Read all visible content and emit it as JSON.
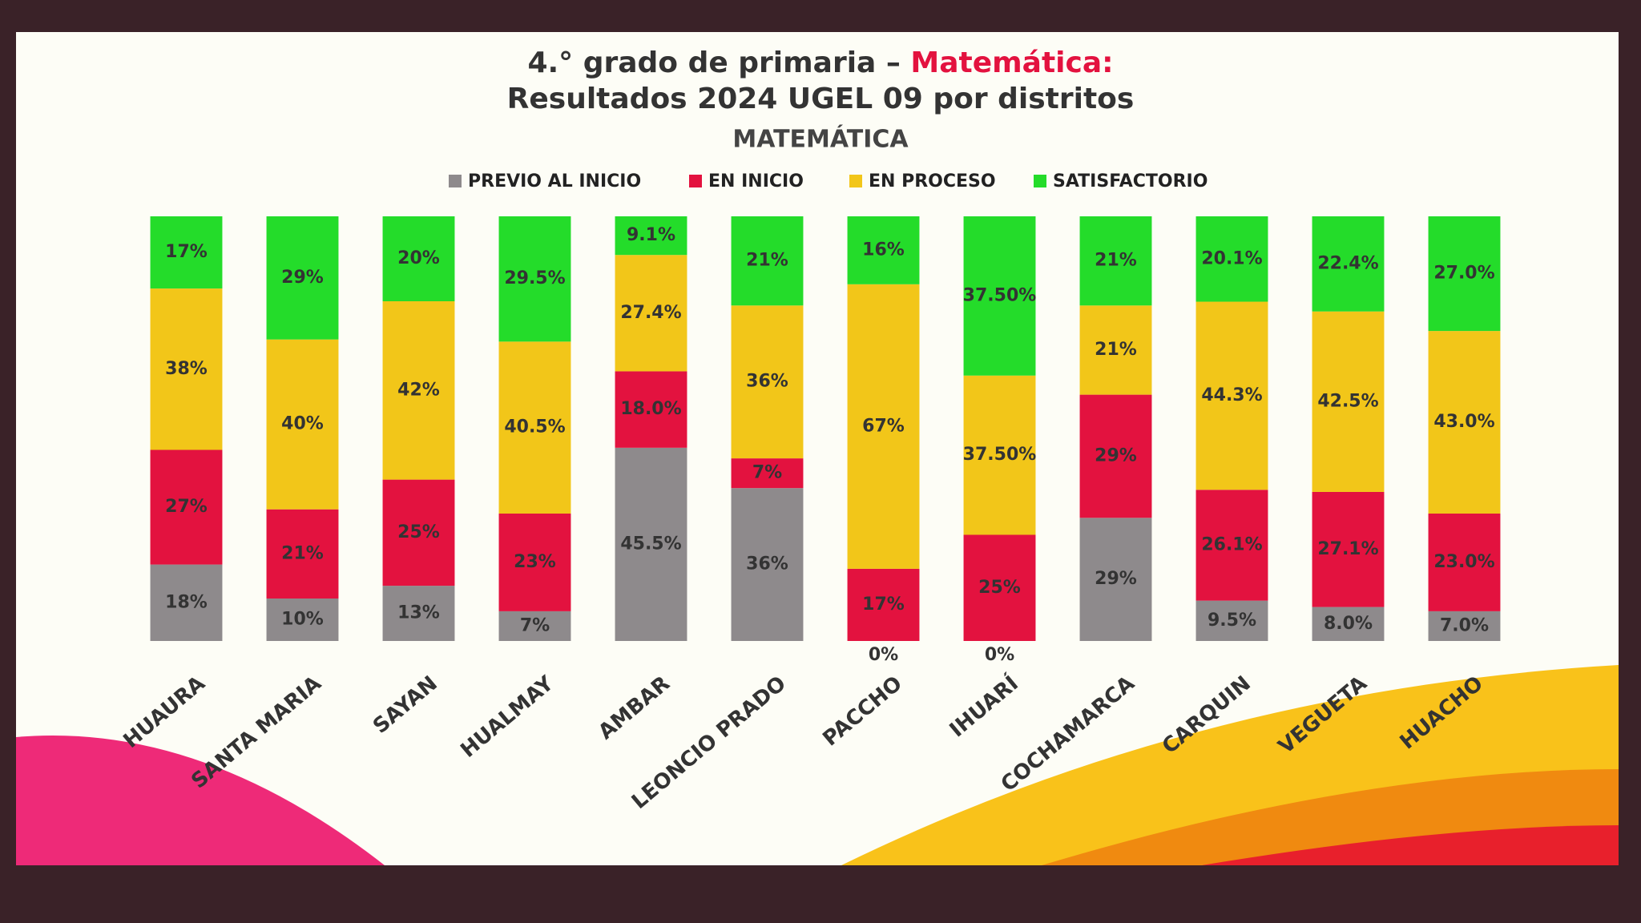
{
  "chart_data": {
    "type": "stacked_bar",
    "title": "4.° grado de primaria –",
    "title_highlight": "Matemática:",
    "title_line2": "Resultados 2024 UGEL 09  por distritos",
    "subtitle": "MATEMÁTICA",
    "categories": [
      "HUAURA",
      "SANTA MARIA",
      "SAYAN",
      "HUALMAY",
      "AMBAR",
      "LEONCIO PRADO",
      "PACCHO",
      "IHUARÍ",
      "COCHAMARCA",
      "CARQUIN",
      "VEGUETA",
      "HUACHO"
    ],
    "ylim": [
      0,
      100
    ],
    "series": [
      {
        "name": "PREVIO AL  INICIO",
        "color": "#8e8a8c",
        "values": [
          18,
          10,
          13,
          7,
          45.5,
          36,
          0,
          0,
          29,
          9.5,
          8.0,
          7.0
        ],
        "value_labels": [
          "18%",
          "10%",
          "13%",
          "7%",
          "45.5%",
          "36%",
          "0%",
          "0%",
          "29%",
          "9.5%",
          "8.0%",
          "7.0%"
        ]
      },
      {
        "name": "EN INICIO",
        "color": "#e3123f",
        "values": [
          27,
          21,
          25,
          23,
          18.0,
          7,
          17,
          25,
          29,
          26.1,
          27.1,
          23.0
        ],
        "value_labels": [
          "27%",
          "21%",
          "25%",
          "23%",
          "18.0%",
          "7%",
          "17%",
          "25%",
          "29%",
          "26.1%",
          "27.1%",
          "23.0%"
        ]
      },
      {
        "name": "EN PROCESO",
        "color": "#f2c619",
        "values": [
          38,
          40,
          42,
          40.5,
          27.4,
          36,
          67,
          37.5,
          21,
          44.3,
          42.5,
          43.0
        ],
        "value_labels": [
          "38%",
          "40%",
          "42%",
          "40.5%",
          "27.4%",
          "36%",
          "67%",
          "37.50%",
          "21%",
          "44.3%",
          "42.5%",
          "43.0%"
        ]
      },
      {
        "name": "SATISFACTORIO",
        "color": "#24dc2a",
        "values": [
          17,
          29,
          20,
          29.5,
          9.1,
          21,
          16,
          37.5,
          21,
          20.1,
          22.4,
          27.0
        ],
        "value_labels": [
          "17%",
          "29%",
          "20%",
          "29.5%",
          "9.1%",
          "21%",
          "16%",
          "37.50%",
          "21%",
          "20.1%",
          "22.4%",
          "27.0%"
        ]
      }
    ]
  }
}
